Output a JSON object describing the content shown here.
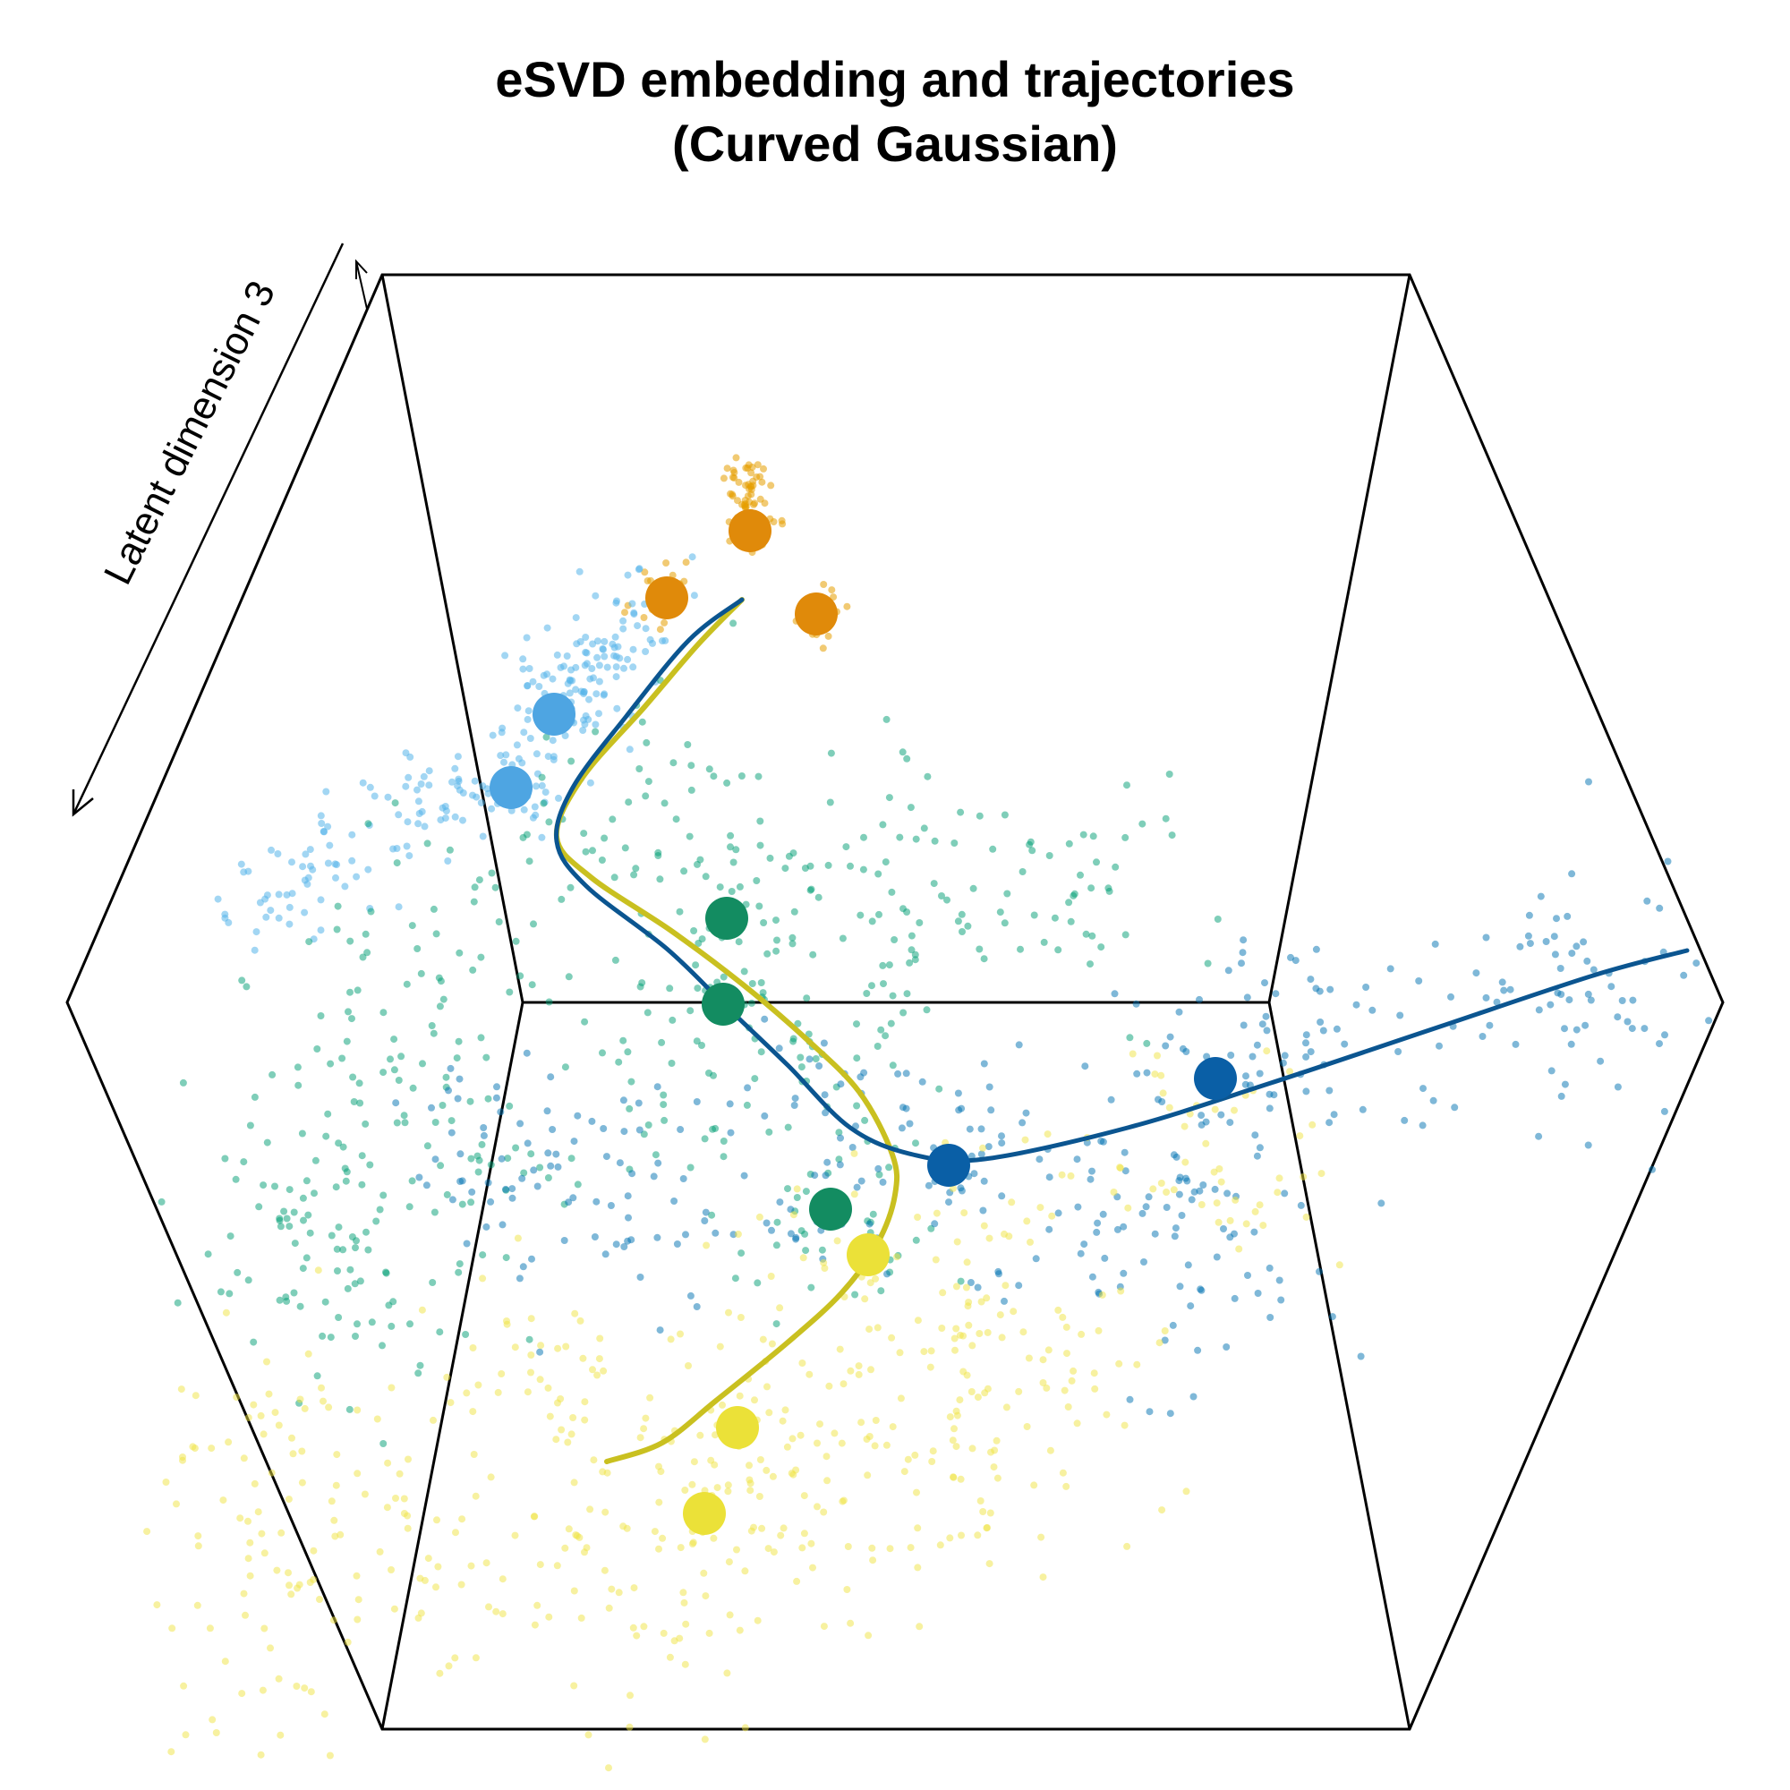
{
  "chart_data": {
    "type": "scatter",
    "projection": "3d",
    "title": [
      "eSVD embedding and trajectories",
      "(Curved Gaussian)"
    ],
    "axes": {
      "z_label": "Latent dimension 3",
      "x_label": "",
      "y_label": ""
    },
    "cluster_colors": [
      "#e69f00",
      "#56b4e9",
      "#009e73",
      "#0072b2",
      "#f0e442"
    ],
    "trajectory_colors": [
      "#0b5590",
      "#c9c020"
    ],
    "cluster_centers": [
      {
        "cluster": 0,
        "color": "#e08a0a"
      },
      {
        "cluster": 0,
        "color": "#e08a0a"
      },
      {
        "cluster": 0,
        "color": "#e08a0a"
      },
      {
        "cluster": 1,
        "color": "#4ea5e2"
      },
      {
        "cluster": 1,
        "color": "#4ea5e2"
      },
      {
        "cluster": 2,
        "color": "#138c61"
      },
      {
        "cluster": 2,
        "color": "#138c61"
      },
      {
        "cluster": 2,
        "color": "#138c61"
      },
      {
        "cluster": 3,
        "color": "#0a5fa6"
      },
      {
        "cluster": 3,
        "color": "#0a5fa6"
      },
      {
        "cluster": 4,
        "color": "#ebe138"
      },
      {
        "cluster": 4,
        "color": "#ebe138"
      },
      {
        "cluster": 4,
        "color": "#ebe138"
      }
    ],
    "trajectories": [
      {
        "color": "#0b5590"
      },
      {
        "color": "#c9c020"
      }
    ],
    "grid": false,
    "legend": "none"
  }
}
